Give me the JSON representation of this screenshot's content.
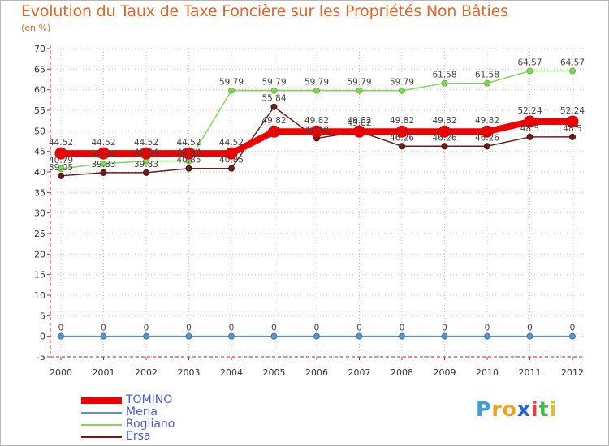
{
  "chart_data": {
    "type": "line",
    "title": "Evolution du Taux de Taxe Foncière sur les Propriétés Non Bâties",
    "subtitle": "(en %)",
    "xlabel": "",
    "ylabel": "(en %)",
    "ylim": [
      -5,
      70
    ],
    "yticks": [
      "-5",
      "0",
      "5",
      "10",
      "15",
      "20",
      "25",
      "30",
      "35",
      "40",
      "45",
      "50",
      "55",
      "60",
      "65",
      "70"
    ],
    "categories": [
      "2000",
      "2001",
      "2002",
      "2003",
      "2004",
      "2005",
      "2006",
      "2007",
      "2008",
      "2009",
      "2010",
      "2011",
      "2012"
    ],
    "grid": true,
    "series": [
      {
        "name": "TOMINO",
        "color": "#ee0000",
        "values": [
          44.52,
          44.52,
          44.52,
          44.52,
          44.52,
          49.82,
          49.82,
          49.82,
          49.82,
          49.82,
          49.82,
          52.24,
          52.24
        ],
        "labels": [
          "44.52",
          "44.52",
          "44.52",
          "44.52",
          "44.52",
          "49.82",
          "49.82",
          "49.82",
          "49.82",
          "49.82",
          "49.82",
          "52.24",
          "52.24"
        ]
      },
      {
        "name": "Meria",
        "color": "#5b93c8",
        "values": [
          0,
          0,
          0,
          0,
          0,
          0,
          0,
          0,
          0,
          0,
          0,
          0,
          0
        ],
        "labels": [
          "0",
          "0",
          "0",
          "0",
          "0",
          "0",
          "0",
          "0",
          "0",
          "0",
          "0",
          "0",
          "0"
        ]
      },
      {
        "name": "Rogliano",
        "color": "#86d45e",
        "values": [
          40.79,
          42.04,
          42.64,
          42.64,
          59.79,
          59.79,
          59.79,
          59.79,
          59.79,
          61.58,
          61.58,
          64.57,
          64.57
        ],
        "labels": [
          "40.79",
          "42.04",
          "42.64",
          "42.64",
          "59.79",
          "59.79",
          "59.79",
          "59.79",
          "59.79",
          "61.58",
          "61.58",
          "64.57",
          "64.57"
        ]
      },
      {
        "name": "Ersa",
        "color": "#6e1d1d",
        "values": [
          39.05,
          39.83,
          39.83,
          40.85,
          40.85,
          55.84,
          48.18,
          49.82,
          46.26,
          46.26,
          46.26,
          48.5,
          48.5
        ],
        "labels": [
          "39.05",
          "39.83",
          "39.83",
          "40.85",
          "40.85",
          "55.84",
          "48.18",
          "49.82",
          "46.26",
          "46.26",
          "46.26",
          "48.5",
          "48.5"
        ]
      }
    ],
    "legend_position": "bottom-left"
  },
  "legend": {
    "items": [
      {
        "label": "TOMINO",
        "color": "#ee0000"
      },
      {
        "label": "Meria",
        "color": "#5b93c8"
      },
      {
        "label": "Rogliano",
        "color": "#86d45e"
      },
      {
        "label": "Ersa",
        "color": "#6e1d1d"
      }
    ]
  },
  "logo": {
    "letters": [
      "P",
      "r",
      "o",
      "x",
      "i",
      "t",
      "i"
    ],
    "colors": [
      "#3aa0e0",
      "#f0a020",
      "#f0a020",
      "#2266cc",
      "#e04040",
      "#48b848",
      "#e0c020"
    ]
  }
}
